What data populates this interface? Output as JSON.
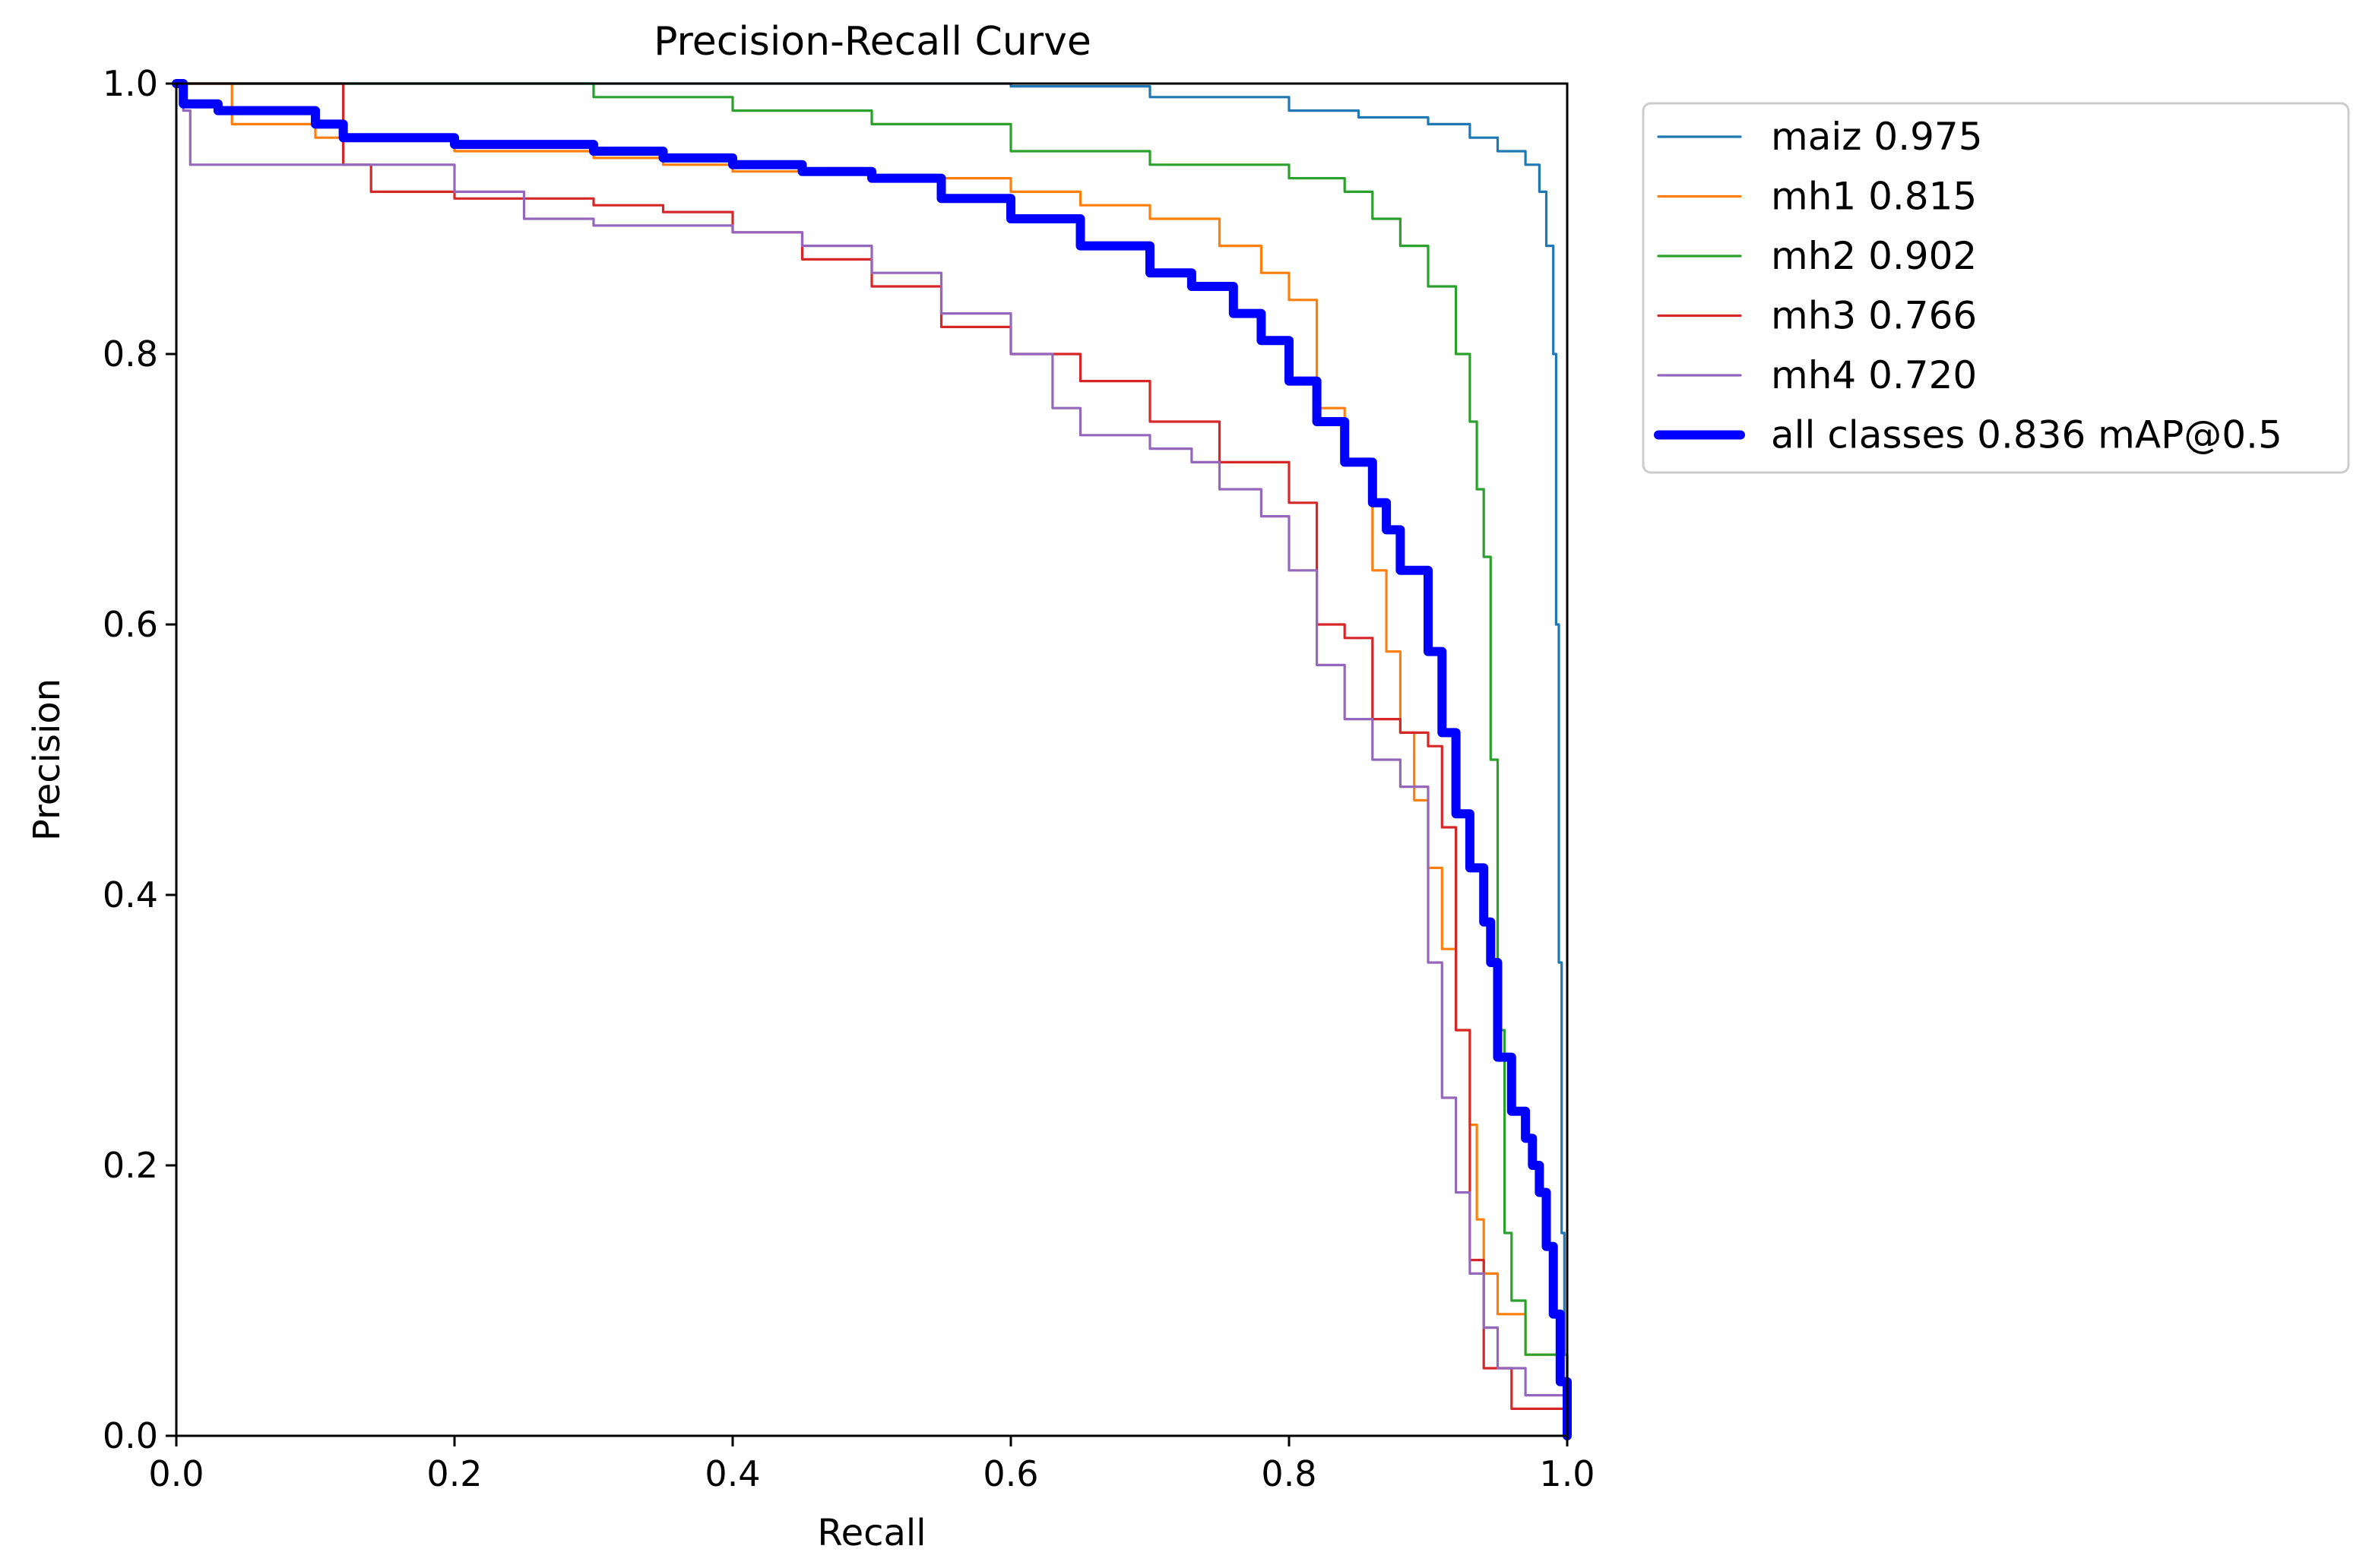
{
  "chart_data": {
    "type": "line",
    "title": "Precision-Recall Curve",
    "xlabel": "Recall",
    "ylabel": "Precision",
    "xlim": [
      0,
      1
    ],
    "ylim": [
      0,
      1
    ],
    "xticks": [
      "0.0",
      "0.2",
      "0.4",
      "0.6",
      "0.8",
      "1.0"
    ],
    "yticks": [
      "0.0",
      "0.2",
      "0.4",
      "0.6",
      "0.8",
      "1.0"
    ],
    "grid": false,
    "legend_position": "outside-top-right",
    "series": [
      {
        "name": "maiz",
        "legend": "maiz 0.975",
        "color": "#1f77b4",
        "bold": false,
        "x": [
          0,
          0.5,
          0.6,
          0.7,
          0.8,
          0.85,
          0.9,
          0.93,
          0.95,
          0.97,
          0.98,
          0.985,
          0.99,
          0.992,
          0.994,
          0.996,
          0.998,
          1.0
        ],
        "y": [
          1.0,
          1.0,
          0.998,
          0.99,
          0.98,
          0.975,
          0.97,
          0.96,
          0.95,
          0.94,
          0.92,
          0.88,
          0.8,
          0.6,
          0.35,
          0.15,
          0.06,
          0.0
        ]
      },
      {
        "name": "mh1",
        "legend": "mh1 0.815",
        "color": "#ff7f0e",
        "bold": false,
        "x": [
          0,
          0.03,
          0.04,
          0.1,
          0.2,
          0.3,
          0.35,
          0.4,
          0.5,
          0.6,
          0.65,
          0.7,
          0.75,
          0.78,
          0.8,
          0.82,
          0.84,
          0.86,
          0.87,
          0.88,
          0.89,
          0.9,
          0.91,
          0.92,
          0.93,
          0.935,
          0.94,
          0.95,
          0.97,
          1.0
        ],
        "y": [
          1.0,
          1.0,
          0.97,
          0.96,
          0.95,
          0.945,
          0.94,
          0.935,
          0.93,
          0.92,
          0.91,
          0.9,
          0.88,
          0.86,
          0.84,
          0.76,
          0.72,
          0.64,
          0.58,
          0.52,
          0.47,
          0.42,
          0.36,
          0.3,
          0.23,
          0.16,
          0.12,
          0.09,
          0.06,
          0.0
        ]
      },
      {
        "name": "mh2",
        "legend": "mh2 0.902",
        "color": "#2ca02c",
        "bold": false,
        "x": [
          0,
          0.25,
          0.3,
          0.4,
          0.5,
          0.6,
          0.7,
          0.8,
          0.84,
          0.86,
          0.88,
          0.9,
          0.92,
          0.93,
          0.935,
          0.94,
          0.945,
          0.95,
          0.955,
          0.96,
          0.97,
          1.0
        ],
        "y": [
          1.0,
          1.0,
          0.99,
          0.98,
          0.97,
          0.95,
          0.94,
          0.93,
          0.92,
          0.9,
          0.88,
          0.85,
          0.8,
          0.75,
          0.7,
          0.65,
          0.5,
          0.3,
          0.15,
          0.1,
          0.06,
          0.0
        ]
      },
      {
        "name": "mh3",
        "legend": "mh3 0.766",
        "color": "#d62728",
        "bold": false,
        "x": [
          0,
          0.11,
          0.12,
          0.14,
          0.2,
          0.3,
          0.35,
          0.4,
          0.45,
          0.5,
          0.55,
          0.6,
          0.65,
          0.7,
          0.75,
          0.8,
          0.82,
          0.84,
          0.86,
          0.88,
          0.9,
          0.91,
          0.92,
          0.93,
          0.94,
          0.96,
          1.0
        ],
        "y": [
          1.0,
          1.0,
          0.94,
          0.92,
          0.915,
          0.91,
          0.905,
          0.89,
          0.87,
          0.85,
          0.82,
          0.8,
          0.78,
          0.75,
          0.72,
          0.69,
          0.6,
          0.59,
          0.53,
          0.52,
          0.51,
          0.45,
          0.3,
          0.13,
          0.05,
          0.02,
          0.0
        ]
      },
      {
        "name": "mh4",
        "legend": "mh4 0.720",
        "color": "#9467bd",
        "bold": false,
        "x": [
          0,
          0.005,
          0.01,
          0.1,
          0.2,
          0.25,
          0.3,
          0.4,
          0.45,
          0.5,
          0.55,
          0.6,
          0.63,
          0.65,
          0.7,
          0.73,
          0.75,
          0.78,
          0.8,
          0.82,
          0.84,
          0.86,
          0.88,
          0.9,
          0.91,
          0.92,
          0.93,
          0.94,
          0.95,
          0.97,
          1.0
        ],
        "y": [
          1.0,
          0.98,
          0.94,
          0.94,
          0.92,
          0.9,
          0.895,
          0.89,
          0.88,
          0.86,
          0.83,
          0.8,
          0.76,
          0.74,
          0.73,
          0.72,
          0.7,
          0.68,
          0.64,
          0.57,
          0.53,
          0.5,
          0.48,
          0.35,
          0.25,
          0.18,
          0.12,
          0.08,
          0.05,
          0.03,
          0.0
        ]
      },
      {
        "name": "all classes",
        "legend": "all classes 0.836 mAP@0.5",
        "color": "#0000ff",
        "bold": true,
        "x": [
          0,
          0.005,
          0.03,
          0.1,
          0.12,
          0.2,
          0.3,
          0.35,
          0.4,
          0.45,
          0.5,
          0.55,
          0.6,
          0.65,
          0.7,
          0.73,
          0.76,
          0.78,
          0.8,
          0.82,
          0.84,
          0.86,
          0.87,
          0.88,
          0.9,
          0.91,
          0.92,
          0.93,
          0.94,
          0.945,
          0.95,
          0.96,
          0.97,
          0.975,
          0.98,
          0.985,
          0.99,
          0.995,
          1.0
        ],
        "y": [
          1.0,
          0.985,
          0.98,
          0.97,
          0.96,
          0.955,
          0.95,
          0.945,
          0.94,
          0.935,
          0.93,
          0.915,
          0.9,
          0.88,
          0.86,
          0.85,
          0.83,
          0.81,
          0.78,
          0.75,
          0.72,
          0.69,
          0.67,
          0.64,
          0.58,
          0.52,
          0.46,
          0.42,
          0.38,
          0.35,
          0.28,
          0.24,
          0.22,
          0.2,
          0.18,
          0.14,
          0.09,
          0.04,
          0.0
        ]
      }
    ]
  }
}
